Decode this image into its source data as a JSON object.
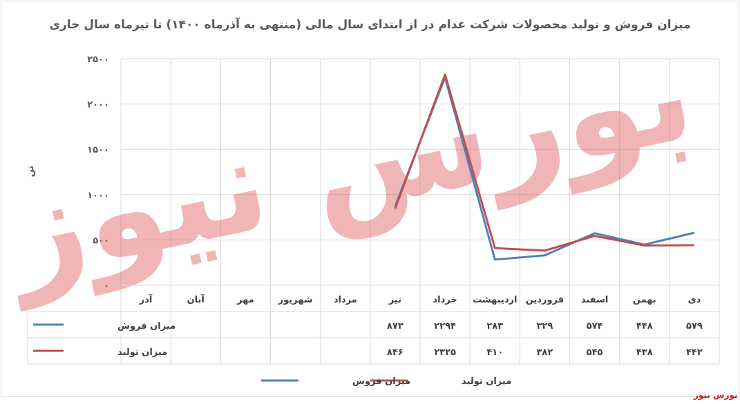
{
  "chart_data": {
    "type": "line",
    "title": "میزان فروش و تولید محصولات شرکت غدام در از ابتدای سال مالی (منتهی به آذرماه ۱۴۰۰) تا تیرماه سال جاری",
    "ylabel": "تن",
    "ylim": [
      0,
      2500
    ],
    "yticks": [
      "۰",
      "۵۰۰",
      "۱۰۰۰",
      "۱۵۰۰",
      "۲۰۰۰",
      "۲۵۰۰"
    ],
    "ytick_values": [
      0,
      500,
      1000,
      1500,
      2000,
      2500
    ],
    "categories": [
      "دی",
      "بهمن",
      "اسفند",
      "فروردین",
      "اردیبهشت",
      "خرداد",
      "تیر",
      "مرداد",
      "شهریور",
      "مهر",
      "آبان",
      "آذر"
    ],
    "series": [
      {
        "name": "میزان فروش",
        "color": "#4f81bd",
        "values": [
          579,
          448,
          574,
          329,
          283,
          2294,
          873,
          null,
          null,
          null,
          null,
          null
        ],
        "labels": [
          "۵۷۹",
          "۴۴۸",
          "۵۷۴",
          "۳۲۹",
          "۲۸۳",
          "۲۲۹۴",
          "۸۷۳",
          "",
          "",
          "",
          "",
          ""
        ]
      },
      {
        "name": "میزان تولید",
        "color": "#c0504d",
        "values": [
          442,
          438,
          545,
          382,
          410,
          2325,
          846,
          null,
          null,
          null,
          null,
          null
        ],
        "labels": [
          "۴۴۲",
          "۴۳۸",
          "۵۴۵",
          "۳۸۲",
          "۴۱۰",
          "۲۳۲۵",
          "۸۴۶",
          "",
          "",
          "",
          "",
          ""
        ]
      }
    ],
    "legend": "bottom",
    "grid": true
  },
  "watermark_text": "بورس نیوز",
  "source_label": "بورس نیوز"
}
